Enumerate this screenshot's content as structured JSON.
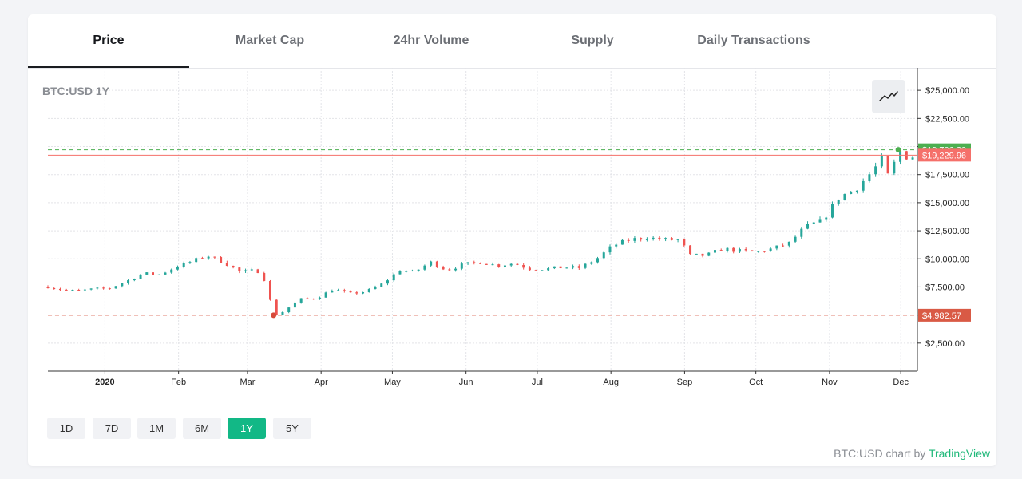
{
  "tabs": [
    {
      "label": "Price",
      "active": true
    },
    {
      "label": "Market Cap",
      "active": false
    },
    {
      "label": "24hr Volume",
      "active": false
    },
    {
      "label": "Supply",
      "active": false
    },
    {
      "label": "Daily Transactions",
      "active": false
    }
  ],
  "chart_data": {
    "type": "candlestick",
    "symbol_label": "BTC:USD 1Y",
    "ylim": [
      0,
      27000
    ],
    "y_ticks": [
      {
        "value": 2500,
        "label": "$2,500.00"
      },
      {
        "value": 5000,
        "label": ""
      },
      {
        "value": 7500,
        "label": "$7,500.00"
      },
      {
        "value": 10000,
        "label": "$10,000.00"
      },
      {
        "value": 12500,
        "label": "$12,500.00"
      },
      {
        "value": 15000,
        "label": "$15,000.00"
      },
      {
        "value": 17500,
        "label": "$17,500.00"
      },
      {
        "value": 20000,
        "label": ""
      },
      {
        "value": 22500,
        "label": "$22,500.00"
      },
      {
        "value": 25000,
        "label": "$25,000.00"
      }
    ],
    "x_ticks": [
      {
        "date": "2020-01-01",
        "label": "2020",
        "bold": true
      },
      {
        "date": "2020-02-01",
        "label": "Feb"
      },
      {
        "date": "2020-03-01",
        "label": "Mar"
      },
      {
        "date": "2020-04-01",
        "label": "Apr"
      },
      {
        "date": "2020-05-01",
        "label": "May"
      },
      {
        "date": "2020-06-01",
        "label": "Jun"
      },
      {
        "date": "2020-07-01",
        "label": "Jul"
      },
      {
        "date": "2020-08-01",
        "label": "Aug"
      },
      {
        "date": "2020-09-01",
        "label": "Sep"
      },
      {
        "date": "2020-10-01",
        "label": "Oct"
      },
      {
        "date": "2020-11-01",
        "label": "Nov"
      },
      {
        "date": "2020-12-01",
        "label": "Dec"
      }
    ],
    "x_range": [
      "2019-12-08",
      "2020-12-08"
    ],
    "price_lines": [
      {
        "value": 19706.3,
        "label": "$19,706.30",
        "color": "#4caf50",
        "style": "dashed"
      },
      {
        "value": 19229.96,
        "label": "$19,229.96",
        "color": "#f5706a",
        "style": "solid"
      },
      {
        "value": 4982.57,
        "label": "$4,982.57",
        "color": "#d95a45",
        "style": "dashed"
      }
    ],
    "markers": [
      {
        "date": "2020-03-12",
        "value": 4982.57,
        "color": "#d64a3a"
      },
      {
        "date": "2020-11-30",
        "value": 19706.3,
        "color": "#4caf50"
      }
    ],
    "close_path": [
      [
        "2019-12-08",
        7520
      ],
      [
        "2019-12-15",
        7200
      ],
      [
        "2019-12-20",
        7150
      ],
      [
        "2019-12-27",
        7300
      ],
      [
        "2020-01-03",
        7400
      ],
      [
        "2020-01-10",
        8000
      ],
      [
        "2020-01-17",
        8700
      ],
      [
        "2020-01-24",
        8600
      ],
      [
        "2020-01-31",
        9300
      ],
      [
        "2020-02-07",
        9800
      ],
      [
        "2020-02-13",
        10300
      ],
      [
        "2020-02-20",
        9700
      ],
      [
        "2020-02-27",
        8800
      ],
      [
        "2020-03-05",
        9000
      ],
      [
        "2020-03-09",
        7900
      ],
      [
        "2020-03-12",
        4900
      ],
      [
        "2020-03-16",
        5300
      ],
      [
        "2020-03-23",
        6400
      ],
      [
        "2020-03-30",
        6500
      ],
      [
        "2020-04-06",
        7300
      ],
      [
        "2020-04-13",
        6900
      ],
      [
        "2020-04-20",
        7100
      ],
      [
        "2020-04-27",
        7800
      ],
      [
        "2020-05-04",
        9000
      ],
      [
        "2020-05-10",
        8800
      ],
      [
        "2020-05-17",
        9700
      ],
      [
        "2020-05-24",
        9000
      ],
      [
        "2020-05-31",
        9500
      ],
      [
        "2020-06-07",
        9700
      ],
      [
        "2020-06-14",
        9400
      ],
      [
        "2020-06-21",
        9600
      ],
      [
        "2020-06-28",
        9100
      ],
      [
        "2020-07-05",
        9100
      ],
      [
        "2020-07-12",
        9250
      ],
      [
        "2020-07-19",
        9200
      ],
      [
        "2020-07-26",
        10000
      ],
      [
        "2020-08-02",
        11200
      ],
      [
        "2020-08-09",
        11700
      ],
      [
        "2020-08-16",
        11900
      ],
      [
        "2020-08-23",
        11700
      ],
      [
        "2020-08-30",
        11700
      ],
      [
        "2020-09-03",
        10300
      ],
      [
        "2020-09-10",
        10300
      ],
      [
        "2020-09-17",
        10900
      ],
      [
        "2020-09-24",
        10700
      ],
      [
        "2020-10-01",
        10600
      ],
      [
        "2020-10-08",
        10900
      ],
      [
        "2020-10-15",
        11400
      ],
      [
        "2020-10-22",
        12900
      ],
      [
        "2020-10-29",
        13400
      ],
      [
        "2020-11-05",
        15500
      ],
      [
        "2020-11-12",
        16200
      ],
      [
        "2020-11-19",
        17800
      ],
      [
        "2020-11-24",
        19100
      ],
      [
        "2020-11-26",
        17000
      ],
      [
        "2020-11-30",
        19700
      ],
      [
        "2020-12-04",
        19000
      ],
      [
        "2020-12-08",
        19230
      ]
    ]
  },
  "toolbar": {
    "chart_type_icon": "line-chart-icon"
  },
  "ranges": [
    {
      "label": "1D",
      "active": false
    },
    {
      "label": "7D",
      "active": false
    },
    {
      "label": "1M",
      "active": false
    },
    {
      "label": "6M",
      "active": false
    },
    {
      "label": "1Y",
      "active": true
    },
    {
      "label": "5Y",
      "active": false
    }
  ],
  "attribution": {
    "prefix": "BTC:USD chart by",
    "brand": "TradingView"
  },
  "colors": {
    "up": "#26a69a",
    "down": "#ef5350",
    "accent": "#12b886"
  }
}
